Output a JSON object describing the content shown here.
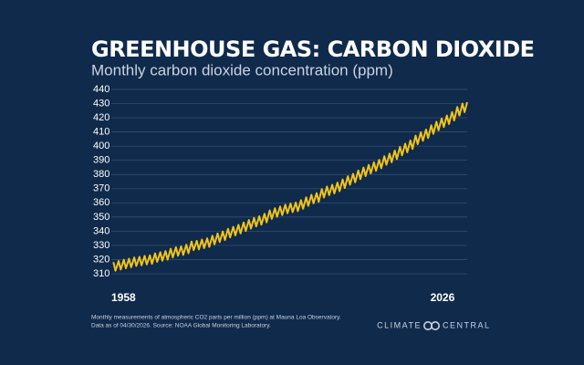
{
  "chart_data": {
    "type": "line",
    "title": "GREENHOUSE GAS: CARBON DIOXIDE",
    "subtitle": "Monthly carbon dioxide concentration (ppm)",
    "color": "#f2c418",
    "grid": true,
    "xlim": [
      1958,
      2026.3
    ],
    "xticks": [
      1958,
      2026
    ],
    "ylim": [
      307,
      440
    ],
    "yticks": [
      310,
      320,
      330,
      340,
      350,
      360,
      370,
      380,
      390,
      400,
      410,
      420,
      430,
      440
    ],
    "x": [
      1958.4,
      1958.8,
      1959.4,
      1959.8,
      1960.4,
      1960.8,
      1961.4,
      1961.8,
      1962.4,
      1962.8,
      1963.4,
      1963.8,
      1964.4,
      1964.8,
      1965.4,
      1965.8,
      1966.4,
      1966.8,
      1967.4,
      1967.8,
      1968.4,
      1968.8,
      1969.4,
      1969.8,
      1970.4,
      1970.8,
      1971.4,
      1971.8,
      1972.4,
      1972.8,
      1973.4,
      1973.8,
      1974.4,
      1974.8,
      1975.4,
      1975.8,
      1976.4,
      1976.8,
      1977.4,
      1977.8,
      1978.4,
      1978.8,
      1979.4,
      1979.8,
      1980.4,
      1980.8,
      1981.4,
      1981.8,
      1982.4,
      1982.8,
      1983.4,
      1983.8,
      1984.4,
      1984.8,
      1985.4,
      1985.8,
      1986.4,
      1986.8,
      1987.4,
      1987.8,
      1988.4,
      1988.8,
      1989.4,
      1989.8,
      1990.4,
      1990.8,
      1991.4,
      1991.8,
      1992.4,
      1992.8,
      1993.4,
      1993.8,
      1994.4,
      1994.8,
      1995.4,
      1995.8,
      1996.4,
      1996.8,
      1997.4,
      1997.8,
      1998.4,
      1998.8,
      1999.4,
      1999.8,
      2000.4,
      2000.8,
      2001.4,
      2001.8,
      2002.4,
      2002.8,
      2003.4,
      2003.8,
      2004.4,
      2004.8,
      2005.4,
      2005.8,
      2006.4,
      2006.8,
      2007.4,
      2007.8,
      2008.4,
      2008.8,
      2009.4,
      2009.8,
      2010.4,
      2010.8,
      2011.4,
      2011.8,
      2012.4,
      2012.8,
      2013.4,
      2013.8,
      2014.4,
      2014.8,
      2015.4,
      2015.8,
      2016.4,
      2016.8,
      2017.4,
      2017.8,
      2018.4,
      2018.8,
      2019.4,
      2019.8,
      2020.4,
      2020.8,
      2021.4,
      2021.8,
      2022.4,
      2022.8,
      2023.4,
      2023.8,
      2024.4,
      2024.8,
      2025.4,
      2025.8,
      2026.3
    ],
    "values": [
      318.2,
      312.2,
      319.0,
      313.0,
      319.9,
      313.9,
      320.6,
      314.6,
      321.5,
      315.5,
      322.0,
      316.0,
      322.6,
      316.6,
      323.0,
      317.0,
      324.4,
      318.4,
      325.2,
      319.2,
      326.0,
      320.0,
      327.6,
      321.6,
      328.7,
      322.7,
      329.3,
      323.3,
      330.5,
      324.5,
      332.7,
      326.7,
      333.2,
      327.2,
      334.1,
      328.1,
      335.0,
      329.0,
      336.8,
      330.8,
      338.4,
      332.4,
      339.8,
      333.8,
      341.7,
      335.7,
      343.1,
      337.1,
      344.5,
      338.5,
      346.2,
      340.2,
      347.9,
      341.9,
      349.4,
      343.4,
      350.6,
      344.6,
      352.3,
      346.3,
      354.7,
      348.7,
      356.2,
      350.2,
      357.4,
      351.4,
      358.7,
      352.7,
      359.5,
      353.5,
      360.2,
      354.2,
      361.9,
      355.9,
      363.9,
      357.9,
      365.7,
      359.7,
      366.8,
      360.8,
      369.8,
      363.8,
      371.5,
      365.5,
      372.7,
      366.7,
      374.3,
      368.3,
      376.5,
      370.5,
      378.8,
      372.8,
      380.5,
      374.5,
      382.8,
      376.8,
      384.9,
      378.9,
      386.8,
      380.8,
      388.6,
      382.6,
      390.4,
      384.4,
      392.9,
      386.9,
      394.7,
      388.7,
      396.9,
      390.9,
      399.5,
      393.5,
      401.7,
      395.7,
      404.0,
      398.0,
      407.4,
      401.4,
      409.8,
      403.8,
      411.7,
      405.7,
      414.7,
      408.7,
      417.2,
      411.2,
      419.5,
      413.5,
      421.6,
      415.6,
      424.1,
      418.1,
      427.6,
      421.6,
      430.0,
      424.0,
      431.0
    ],
    "footnote": [
      "Monthly measurements of atmospheric CO2 parts per million (ppm) at Mauna Loa Observatory.",
      "Data as of 04/30/2026. Source: NOAA Global Monitoring Laboratory."
    ],
    "logo": [
      "CLIMATE",
      "CENTRAL"
    ]
  }
}
